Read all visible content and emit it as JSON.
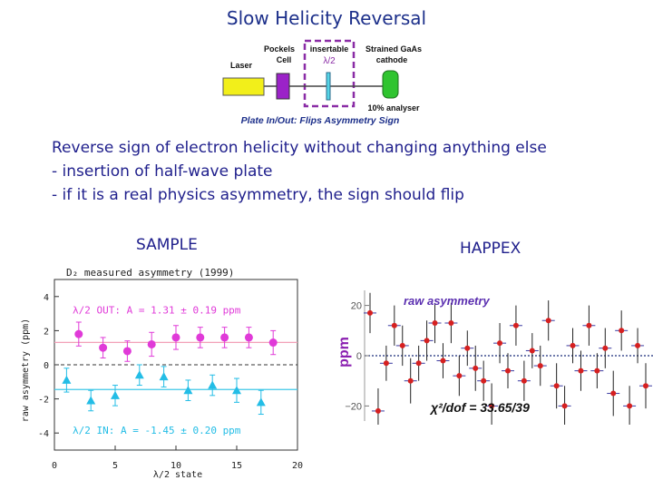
{
  "title": "Slow Helicity Reversal",
  "diagram": {
    "laser_label": "Laser",
    "pockels_label_1": "Pockels",
    "pockels_label_2": "Cell",
    "insertable_label": "insertable",
    "halfwave_label": "λ/2",
    "cathode_label_1": "Strained GaAs",
    "cathode_label_2": "cathode",
    "analyser_label": "10% analyser",
    "caption": "Plate In/Out: Flips Asymmetry Sign",
    "colors": {
      "laser": "#f2ef1a",
      "pockels": "#9b22c8",
      "cathode": "#2fc42f",
      "insertable_box": "#8a2ca6",
      "caption": "#1c2f8a"
    }
  },
  "body": {
    "line1": "Reverse sign of electron helicity without changing anything else",
    "line2": "- insertion of half-wave plate",
    "line3": "- if it is a real physics asymmetry, the sign should flip"
  },
  "sample": {
    "label": "SAMPLE",
    "chart_data": {
      "type": "scatter",
      "title": "D₂ measured asymmetry (1999)",
      "xlabel": "λ/2 state",
      "ylabel": "raw asymmetry (ppm)",
      "xlim": [
        0,
        20
      ],
      "ylim": [
        -5,
        5
      ],
      "x_ticks": [
        "0",
        "5",
        "10",
        "15",
        "20"
      ],
      "y_ticks": [
        {
          "value": 4,
          "label": "4"
        },
        {
          "value": 2,
          "label": "2"
        },
        {
          "value": 0,
          "label": "0"
        },
        {
          "value": -2,
          "label": "-2"
        },
        {
          "value": -4,
          "label": "-4"
        }
      ],
      "series": [
        {
          "name": "λ/2 OUT: A = 1.31 ± 0.19 ppm",
          "marker": "circle",
          "color": "#e03ad8",
          "fit": 1.31,
          "x": [
            2,
            4,
            6,
            8,
            10,
            12,
            14,
            16,
            18
          ],
          "y": [
            1.8,
            1.0,
            0.8,
            1.2,
            1.6,
            1.6,
            1.6,
            1.6,
            1.3
          ],
          "err": [
            0.7,
            0.6,
            0.6,
            0.7,
            0.7,
            0.6,
            0.6,
            0.6,
            0.7
          ]
        },
        {
          "name": "λ/2 IN: A = -1.45 ± 0.20 ppm",
          "marker": "triangle",
          "color": "#23bde6",
          "fit": -1.45,
          "x": [
            1,
            3,
            5,
            7,
            9,
            11,
            13,
            15,
            17
          ],
          "y": [
            -0.9,
            -2.1,
            -1.8,
            -0.6,
            -0.7,
            -1.5,
            -1.2,
            -1.5,
            -2.2
          ],
          "err": [
            0.7,
            0.6,
            0.6,
            0.6,
            0.6,
            0.6,
            0.6,
            0.7,
            0.7
          ]
        }
      ],
      "fit_color": "#f2a0b8",
      "fit_color_in": "#40c8e8",
      "zero_line": "dashed"
    }
  },
  "happex": {
    "label": "HAPPEX",
    "chart_data": {
      "type": "scatter",
      "title": "raw asymmetry",
      "ylabel": "ppm",
      "annotation": "χ²/dof = 33.65/39",
      "ylim": [
        -26,
        26
      ],
      "y_ticks": [
        {
          "value": 20,
          "label": "20"
        },
        {
          "value": 0,
          "label": "0"
        },
        {
          "value": -20,
          "label": "−20"
        }
      ],
      "series": [
        {
          "name": "",
          "color": "#d62020",
          "x": [
            1,
            2,
            3,
            4,
            5,
            6,
            7,
            8,
            9,
            10,
            11,
            12,
            13,
            14,
            15,
            16,
            17,
            18,
            19,
            20,
            21,
            22,
            23,
            24,
            25,
            26,
            27,
            28,
            29,
            30,
            31,
            32,
            33,
            34,
            35
          ],
          "y": [
            17,
            -22,
            -3,
            12,
            4,
            -10,
            -3,
            6,
            13,
            -2,
            13,
            -8,
            3,
            -5,
            -10,
            -20,
            5,
            -6,
            12,
            -10,
            2,
            -4,
            14,
            -12,
            -20,
            4,
            -6,
            12,
            -6,
            3,
            -15,
            10,
            -20,
            4,
            -12
          ],
          "err": [
            8,
            9,
            7,
            8,
            8,
            9,
            7,
            8,
            8,
            7,
            8,
            8,
            7,
            9,
            8,
            9,
            8,
            7,
            8,
            8,
            7,
            8,
            8,
            9,
            8,
            7,
            8,
            8,
            7,
            8,
            9,
            8,
            8,
            7,
            9
          ]
        }
      ],
      "zero_line": "dotted",
      "title_color": "#5b2fb0",
      "ylabel_color": "#8a1fb0"
    }
  }
}
